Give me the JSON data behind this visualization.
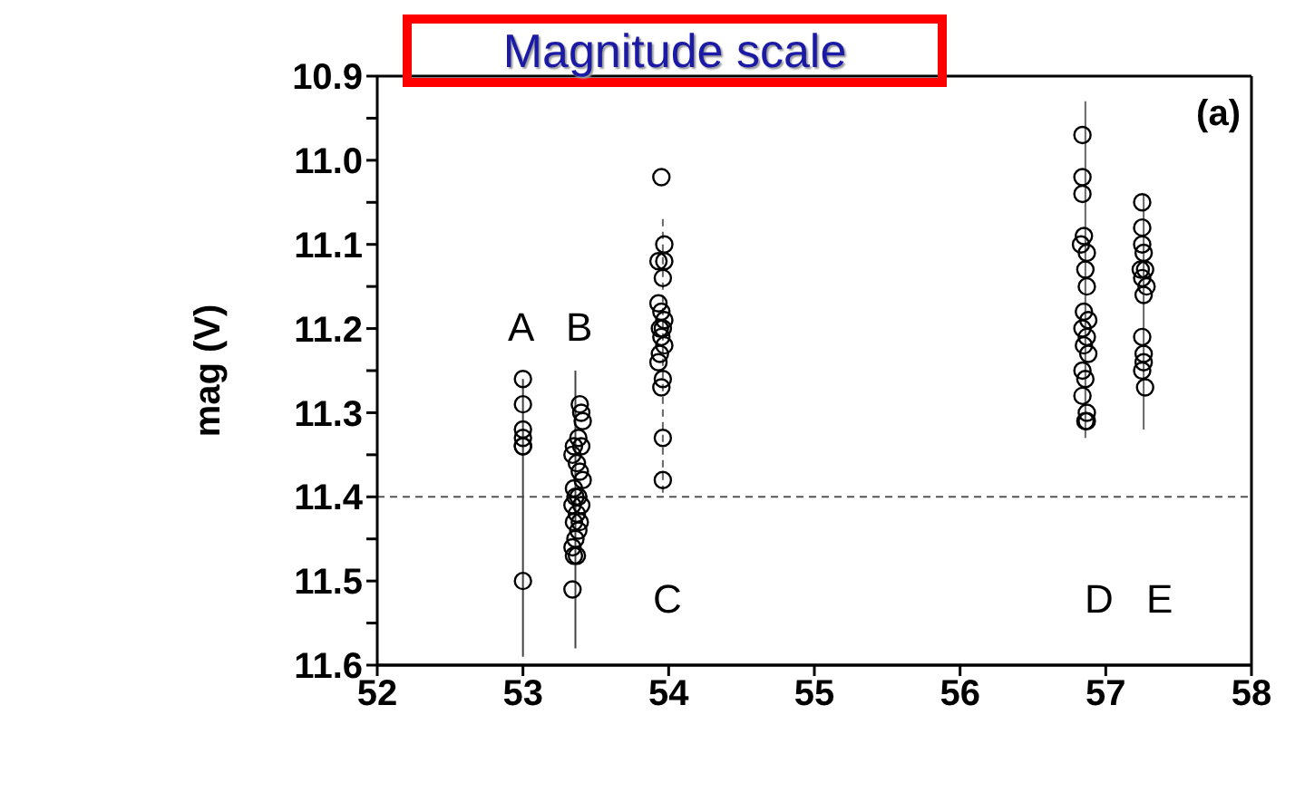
{
  "chart_data": {
    "type": "scatter",
    "title": "Magnitude scale",
    "ylabel": "mag (V)",
    "xlim": [
      52,
      58
    ],
    "xticks": [
      52,
      53,
      54,
      55,
      56,
      57,
      58
    ],
    "ylim": [
      11.6,
      10.9
    ],
    "yticks": [
      10.9,
      {
        "value": 10.95,
        "label": null
      },
      {
        "value": 11,
        "label": "11.0"
      },
      {
        "value": 11.05,
        "label": null
      },
      11.1,
      {
        "value": 11.15,
        "label": null
      },
      11.2,
      {
        "value": 11.25,
        "label": null
      },
      11.3,
      {
        "value": 11.35,
        "label": null
      },
      11.4,
      {
        "value": 11.45,
        "label": null
      },
      11.5,
      {
        "value": 11.55,
        "label": null
      },
      11.6
    ],
    "grid": false,
    "ref_lines": [
      {
        "axis": "y",
        "value": 11.4,
        "color": "#555555",
        "line_style": "dashed"
      }
    ],
    "annotations": [
      "(a)",
      "A",
      "B",
      "C",
      "D",
      "E"
    ],
    "series": [
      {
        "type": "line",
        "marker": "none",
        "color": "#444444",
        "line_style": "solid",
        "x": [
          53,
          53
        ],
        "values": [
          11.26,
          11.59
        ]
      },
      {
        "type": "line",
        "marker": "none",
        "color": "#444444",
        "line_style": "solid",
        "x": [
          53.36,
          53.36
        ],
        "values": [
          11.25,
          11.58
        ]
      },
      {
        "type": "line",
        "marker": "none",
        "color": "#666666",
        "line_style": "dashed",
        "x": [
          53.96,
          53.96
        ],
        "values": [
          11.07,
          11.4
        ]
      },
      {
        "type": "line",
        "marker": "none",
        "color": "#666666",
        "line_style": "solid",
        "x": [
          56.86,
          56.86
        ],
        "values": [
          10.93,
          11.33
        ]
      },
      {
        "type": "line",
        "marker": "none",
        "color": "#666666",
        "line_style": "solid",
        "x": [
          57.26,
          57.26
        ],
        "values": [
          11.04,
          11.32
        ]
      },
      {
        "marker": "circle",
        "color": "#000000",
        "x": [
          53,
          53,
          53,
          53,
          53,
          53,
          53,
          53.39,
          53.4,
          53.41,
          53.38,
          53.35,
          53.4,
          53.34,
          53.37,
          53.39,
          53.41,
          53.35,
          53.38,
          53.36,
          53.4,
          53.34,
          53.37,
          53.39,
          53.35,
          53.38,
          53.36,
          53.34,
          53.37,
          53.35,
          53.34,
          53.95,
          53.97,
          53.97,
          53.93,
          53.96,
          53.93,
          53.95,
          53.97,
          53.94,
          53.96,
          53.95,
          53.97,
          53.94,
          53.93,
          53.96,
          53.95,
          53.96,
          53.96,
          56.84,
          56.84,
          56.84,
          56.85,
          56.83,
          56.87,
          56.86,
          56.87,
          56.85,
          56.88,
          56.84,
          56.87,
          56.85,
          56.88,
          56.84,
          56.86,
          56.84,
          56.87,
          56.86,
          56.87,
          57.25,
          57.25,
          57.25,
          57.26,
          57.24,
          57.27,
          57.25,
          57.28,
          57.26,
          57.25,
          57.26,
          57.26,
          57.25,
          57.27
        ],
        "values": [
          11.26,
          11.29,
          11.32,
          11.33,
          11.34,
          11.34,
          11.5,
          11.29,
          11.3,
          11.31,
          11.33,
          11.34,
          11.34,
          11.35,
          11.36,
          11.37,
          11.38,
          11.39,
          11.4,
          11.4,
          11.41,
          11.41,
          11.42,
          11.43,
          11.43,
          11.44,
          11.45,
          11.46,
          11.47,
          11.47,
          11.51,
          11.02,
          11.1,
          11.12,
          11.12,
          11.14,
          11.17,
          11.18,
          11.19,
          11.2,
          11.2,
          11.21,
          11.22,
          11.23,
          11.24,
          11.26,
          11.27,
          11.33,
          11.38,
          10.97,
          11.02,
          11.04,
          11.09,
          11.1,
          11.11,
          11.13,
          11.15,
          11.18,
          11.19,
          11.2,
          11.21,
          11.22,
          11.23,
          11.25,
          11.26,
          11.28,
          11.3,
          11.31,
          11.31,
          11.05,
          11.08,
          11.1,
          11.11,
          11.13,
          11.13,
          11.14,
          11.15,
          11.16,
          11.21,
          11.23,
          11.24,
          11.25,
          11.27
        ]
      }
    ]
  }
}
